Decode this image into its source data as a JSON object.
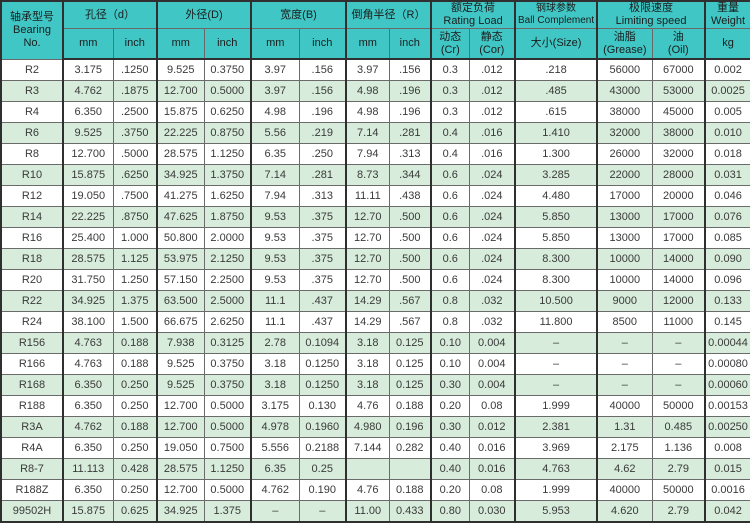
{
  "chart_data": {
    "type": "table",
    "title": "Bearing specifications table (R series)",
    "header": {
      "bearing": "轴承型号\nBearing No.",
      "groups": [
        {
          "label": "孔径（d）",
          "sub": [
            "mm",
            "inch"
          ]
        },
        {
          "label": "外径(D)",
          "sub": [
            "mm",
            "inch"
          ]
        },
        {
          "label": "宽度(B)",
          "sub": [
            "mm",
            "inch"
          ]
        },
        {
          "label": "倒角半径（R）",
          "sub": [
            "mm",
            "inch"
          ]
        },
        {
          "label": "额定负荷\nRating Load",
          "sub": [
            "动态\n(Cr)",
            "静态\n(Cor)"
          ]
        },
        {
          "label": "钢球参数\nBall Complement",
          "sub": [
            "大小(Size)"
          ]
        },
        {
          "label": "极限速度\nLimiting speed",
          "sub": [
            "油脂\n(Grease)",
            "油\n(Oil)"
          ]
        },
        {
          "label": "重量\nWeight",
          "sub": [
            "kg"
          ]
        }
      ]
    },
    "rows": [
      [
        "R2",
        "3.175",
        ".1250",
        "9.525",
        "0.3750",
        "3.97",
        ".156",
        "3.97",
        ".156",
        "0.3",
        ".012",
        ".218",
        "56000",
        "67000",
        "0.002"
      ],
      [
        "R3",
        "4.762",
        ".1875",
        "12.700",
        "0.5000",
        "3.97",
        ".156",
        "4.98",
        ".196",
        "0.3",
        ".012",
        ".485",
        "43000",
        "53000",
        "0.0025"
      ],
      [
        "R4",
        "6.350",
        ".2500",
        "15.875",
        "0.6250",
        "4.98",
        ".196",
        "4.98",
        ".196",
        "0.3",
        ".012",
        ".615",
        "38000",
        "45000",
        "0.005"
      ],
      [
        "R6",
        "9.525",
        ".3750",
        "22.225",
        "0.8750",
        "5.56",
        ".219",
        "7.14",
        ".281",
        "0.4",
        ".016",
        "1.410",
        "32000",
        "38000",
        "0.010"
      ],
      [
        "R8",
        "12.700",
        ".5000",
        "28.575",
        "1.1250",
        "6.35",
        ".250",
        "7.94",
        ".313",
        "0.4",
        ".016",
        "1.300",
        "26000",
        "32000",
        "0.018"
      ],
      [
        "R10",
        "15.875",
        ".6250",
        "34.925",
        "1.3750",
        "7.14",
        ".281",
        "8.73",
        ".344",
        "0.6",
        ".024",
        "3.285",
        "22000",
        "28000",
        "0.031"
      ],
      [
        "R12",
        "19.050",
        ".7500",
        "41.275",
        "1.6250",
        "7.94",
        ".313",
        "11.11",
        ".438",
        "0.6",
        ".024",
        "4.480",
        "17000",
        "20000",
        "0.046"
      ],
      [
        "R14",
        "22.225",
        ".8750",
        "47.625",
        "1.8750",
        "9.53",
        ".375",
        "12.70",
        ".500",
        "0.6",
        ".024",
        "5.850",
        "13000",
        "17000",
        "0.076"
      ],
      [
        "R16",
        "25.400",
        "1.000",
        "50.800",
        "2.0000",
        "9.53",
        ".375",
        "12.70",
        ".500",
        "0.6",
        ".024",
        "5.850",
        "13000",
        "17000",
        "0.085"
      ],
      [
        "R18",
        "28.575",
        "1.125",
        "53.975",
        "2.1250",
        "9.53",
        ".375",
        "12.70",
        ".500",
        "0.6",
        ".024",
        "8.300",
        "10000",
        "14000",
        "0.090"
      ],
      [
        "R20",
        "31.750",
        "1.250",
        "57.150",
        "2.2500",
        "9.53",
        ".375",
        "12.70",
        ".500",
        "0.6",
        ".024",
        "8.300",
        "10000",
        "14000",
        "0.096"
      ],
      [
        "R22",
        "34.925",
        "1.375",
        "63.500",
        "2.5000",
        "11.1",
        ".437",
        "14.29",
        ".567",
        "0.8",
        ".032",
        "10.500",
        "9000",
        "12000",
        "0.133"
      ],
      [
        "R24",
        "38.100",
        "1.500",
        "66.675",
        "2.6250",
        "11.1",
        ".437",
        "14.29",
        ".567",
        "0.8",
        ".032",
        "11.800",
        "8500",
        "11000",
        "0.145"
      ],
      [
        "R156",
        "4.763",
        "0.188",
        "7.938",
        "0.3125",
        "2.78",
        "0.1094",
        "3.18",
        "0.125",
        "0.10",
        "0.004",
        "–",
        "–",
        "–",
        "0.00044"
      ],
      [
        "R166",
        "4.763",
        "0.188",
        "9.525",
        "0.3750",
        "3.18",
        "0.1250",
        "3.18",
        "0.125",
        "0.10",
        "0.004",
        "–",
        "–",
        "–",
        "0.00080"
      ],
      [
        "R168",
        "6.350",
        "0.250",
        "9.525",
        "0.3750",
        "3.18",
        "0.1250",
        "3.18",
        "0.125",
        "0.30",
        "0.004",
        "–",
        "–",
        "–",
        "0.00060"
      ],
      [
        "R188",
        "6.350",
        "0.250",
        "12.700",
        "0.5000",
        "3.175",
        "0.130",
        "4.76",
        "0.188",
        "0.20",
        "0.08",
        "1.999",
        "40000",
        "50000",
        "0.00153"
      ],
      [
        "R3A",
        "4.762",
        "0.188",
        "12.700",
        "0.5000",
        "4.978",
        "0.1960",
        "4.980",
        "0.196",
        "0.30",
        "0.012",
        "2.381",
        "1.31",
        "0.485",
        "0.00250"
      ],
      [
        "R4A",
        "6.350",
        "0.250",
        "19.050",
        "0.7500",
        "5.556",
        "0.2188",
        "7.144",
        "0.282",
        "0.40",
        "0.016",
        "3.969",
        "2.175",
        "1.136",
        "0.008"
      ],
      [
        "R8-7",
        "11.113",
        "0.428",
        "28.575",
        "1.1250",
        "6.35",
        "0.25",
        "",
        "",
        "0.40",
        "0.016",
        "4.763",
        "4.62",
        "2.79",
        "0.015"
      ],
      [
        "R188Z",
        "6.350",
        "0.250",
        "12.700",
        "0.5000",
        "4.762",
        "0.190",
        "4.76",
        "0.188",
        "0.20",
        "0.08",
        "1.999",
        "40000",
        "50000",
        "0.0016"
      ],
      [
        "99502H",
        "15.875",
        "0.625",
        "34.925",
        "1.375",
        "–",
        "–",
        "11.00",
        "0.433",
        "0.80",
        "0.030",
        "5.953",
        "4.620",
        "2.79",
        "0.042"
      ]
    ],
    "colors": {
      "header_bg": "#40c7c5",
      "row_bg": "#ffffff",
      "row_alt_bg": "#d7ecda",
      "border": "#2f2f2f",
      "text": "#3a3a3a"
    },
    "layout": {
      "group_boundary_columns": [
        1,
        3,
        5,
        7,
        9,
        11,
        12,
        14
      ],
      "striping": "even rows white, odd rows green"
    }
  }
}
